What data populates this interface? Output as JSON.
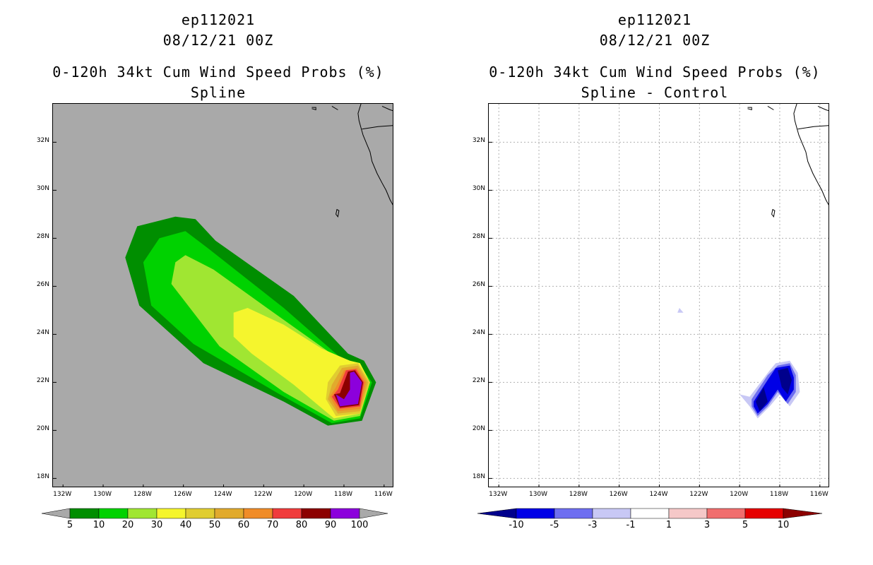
{
  "panels": [
    {
      "title1": "ep112021",
      "title2": "08/12/21 00Z",
      "title3": "0-120h 34kt Cum Wind Speed Probs (%)",
      "title4": "Spline"
    },
    {
      "title1": "ep112021",
      "title2": "08/12/21 00Z",
      "title3": "0-120h 34kt Cum Wind Speed Probs (%)",
      "title4": "Spline - Control"
    }
  ],
  "chart_data": [
    {
      "type": "contour-map",
      "title": "0-120h 34kt Cum Wind Speed Probs (%)",
      "subtitle": "Spline",
      "storm": "ep112021",
      "time": "08/12/21 00Z",
      "background_color": "#a9a9a9",
      "grid": false,
      "xlim": [
        -132.5,
        -115.5
      ],
      "ylim": [
        17.6,
        33.6
      ],
      "x_ticks": [
        -132,
        -130,
        -128,
        -126,
        -124,
        -122,
        -120,
        -118,
        -116
      ],
      "x_tick_labels": [
        "132W",
        "130W",
        "128W",
        "126W",
        "124W",
        "122W",
        "120W",
        "118W",
        "116W"
      ],
      "y_ticks": [
        18,
        20,
        22,
        24,
        26,
        28,
        30,
        32
      ],
      "y_tick_labels": [
        "18N",
        "20N",
        "22N",
        "24N",
        "26N",
        "28N",
        "30N",
        "32N"
      ],
      "colorbar": {
        "levels": [
          "5",
          "10",
          "20",
          "30",
          "40",
          "50",
          "60",
          "70",
          "80",
          "90",
          "100"
        ],
        "colors": [
          "#008e00",
          "#00d200",
          "#a0e632",
          "#f5f52d",
          "#e0cd31",
          "#e1aa2d",
          "#f08c28",
          "#f03c3c",
          "#8c0000",
          "#8c00dc"
        ],
        "extend_color": "#a9a9a9"
      },
      "contours": [
        {
          "level": "5-10",
          "color": "#008e00",
          "polygon": [
            [
              -128.9,
              27.2
            ],
            [
              -128.3,
              28.5
            ],
            [
              -126.4,
              28.9
            ],
            [
              -125.4,
              28.8
            ],
            [
              -124.4,
              27.9
            ],
            [
              -120.5,
              25.6
            ],
            [
              -117.8,
              23.2
            ],
            [
              -117.0,
              22.9
            ],
            [
              -116.4,
              22.0
            ],
            [
              -117.1,
              20.4
            ],
            [
              -118.8,
              20.2
            ],
            [
              -121.0,
              21.2
            ],
            [
              -125.0,
              22.8
            ],
            [
              -128.2,
              25.2
            ]
          ]
        },
        {
          "level": "10-20",
          "color": "#00d200",
          "polygon": [
            [
              -128.0,
              27.0
            ],
            [
              -127.2,
              28.0
            ],
            [
              -125.9,
              28.3
            ],
            [
              -124.8,
              27.6
            ],
            [
              -121.0,
              25.1
            ],
            [
              -118.0,
              22.9
            ],
            [
              -117.2,
              22.7
            ],
            [
              -116.6,
              22.0
            ],
            [
              -117.2,
              20.5
            ],
            [
              -118.6,
              20.3
            ],
            [
              -121.2,
              21.5
            ],
            [
              -125.5,
              23.6
            ],
            [
              -127.6,
              25.2
            ]
          ]
        },
        {
          "level": "20-30",
          "color": "#a0e632",
          "polygon": [
            [
              -126.6,
              26.1
            ],
            [
              -126.4,
              27.0
            ],
            [
              -125.9,
              27.3
            ],
            [
              -124.5,
              26.7
            ],
            [
              -121.5,
              24.9
            ],
            [
              -118.3,
              23.0
            ],
            [
              -117.2,
              22.8
            ],
            [
              -116.7,
              22.0
            ],
            [
              -117.2,
              20.6
            ],
            [
              -118.5,
              20.4
            ],
            [
              -121.0,
              21.6
            ],
            [
              -124.2,
              23.5
            ]
          ]
        },
        {
          "level": "30-40",
          "color": "#f5f52d",
          "polygon": [
            [
              -123.5,
              24.9
            ],
            [
              -122.8,
              25.1
            ],
            [
              -121.0,
              24.4
            ],
            [
              -119.1,
              23.4
            ],
            [
              -117.7,
              22.9
            ],
            [
              -117.2,
              22.8
            ],
            [
              -116.7,
              22.0
            ],
            [
              -117.2,
              20.7
            ],
            [
              -118.5,
              20.5
            ],
            [
              -120.5,
              21.9
            ],
            [
              -122.6,
              23.2
            ],
            [
              -123.5,
              23.9
            ]
          ]
        },
        {
          "level": "40-50",
          "color": "#e0cd31",
          "polygon": [
            [
              -118.2,
              22.7
            ],
            [
              -117.3,
              22.8
            ],
            [
              -116.7,
              22.0
            ],
            [
              -117.2,
              20.7
            ],
            [
              -118.4,
              20.6
            ],
            [
              -118.9,
              21.3
            ],
            [
              -118.8,
              22.0
            ]
          ]
        },
        {
          "level": "50-60",
          "color": "#e1aa2d",
          "polygon": [
            [
              -118.1,
              22.6
            ],
            [
              -117.3,
              22.7
            ],
            [
              -116.8,
              22.0
            ],
            [
              -117.2,
              20.8
            ],
            [
              -118.3,
              20.7
            ],
            [
              -118.8,
              21.3
            ],
            [
              -118.6,
              21.9
            ]
          ]
        },
        {
          "level": "60-70",
          "color": "#f08c28",
          "polygon": [
            [
              -118.0,
              22.5
            ],
            [
              -117.35,
              22.6
            ],
            [
              -116.9,
              22.0
            ],
            [
              -117.2,
              20.9
            ],
            [
              -118.3,
              20.8
            ],
            [
              -118.7,
              21.4
            ],
            [
              -118.4,
              21.8
            ]
          ]
        },
        {
          "level": "70-80",
          "color": "#f03c3c",
          "polygon": [
            [
              -117.9,
              22.5
            ],
            [
              -117.4,
              22.55
            ],
            [
              -117.0,
              22.0
            ],
            [
              -117.2,
              21.0
            ],
            [
              -118.2,
              20.9
            ],
            [
              -118.6,
              21.4
            ],
            [
              -118.3,
              21.7
            ]
          ]
        },
        {
          "level": "80-90",
          "color": "#8c0000",
          "polygon": [
            [
              -117.8,
              22.45
            ],
            [
              -117.45,
              22.5
            ],
            [
              -117.05,
              22.0
            ],
            [
              -117.25,
              21.05
            ],
            [
              -118.2,
              20.95
            ],
            [
              -118.5,
              21.5
            ],
            [
              -118.2,
              21.55
            ]
          ]
        },
        {
          "level": "90-100",
          "color": "#8c00dc",
          "polygon": [
            [
              -117.7,
              22.4
            ],
            [
              -117.5,
              22.45
            ],
            [
              -117.1,
              22.0
            ],
            [
              -117.3,
              21.1
            ],
            [
              -118.2,
              21.0
            ],
            [
              -118.4,
              21.5
            ],
            [
              -118.0,
              21.3
            ],
            [
              -117.7,
              21.7
            ]
          ]
        }
      ]
    },
    {
      "type": "contour-map",
      "title": "0-120h 34kt Cum Wind Speed Probs (%)",
      "subtitle": "Spline - Control",
      "storm": "ep112021",
      "time": "08/12/21 00Z",
      "background_color": "#ffffff",
      "grid": true,
      "xlim": [
        -132.5,
        -115.5
      ],
      "ylim": [
        17.6,
        33.6
      ],
      "x_ticks": [
        -132,
        -130,
        -128,
        -126,
        -124,
        -122,
        -120,
        -118,
        -116
      ],
      "x_tick_labels": [
        "132W",
        "130W",
        "128W",
        "126W",
        "124W",
        "122W",
        "120W",
        "118W",
        "116W"
      ],
      "y_ticks": [
        18,
        20,
        22,
        24,
        26,
        28,
        30,
        32
      ],
      "y_tick_labels": [
        "18N",
        "20N",
        "22N",
        "24N",
        "26N",
        "28N",
        "30N",
        "32N"
      ],
      "colorbar": {
        "levels": [
          "-10",
          "-5",
          "-3",
          "-1",
          "1",
          "3",
          "5",
          "10"
        ],
        "colors": [
          "#00008c",
          "#0000e6",
          "#6e6ef0",
          "#c8c8f5",
          "#ffffff",
          "#f5c8c8",
          "#f06e6e",
          "#e60000",
          "#8c0000"
        ]
      },
      "contours": [
        {
          "level": "-3 to -1",
          "color": "#c8c8f5",
          "polygon": [
            [
              -123.0,
              25.1
            ],
            [
              -122.8,
              24.9
            ],
            [
              -122.9,
              24.9
            ],
            [
              -123.1,
              24.9
            ]
          ]
        },
        {
          "level": "-3 to -1",
          "color": "#c8c8f5",
          "polygon": [
            [
              -119.5,
              21.4
            ],
            [
              -118.5,
              22.5
            ],
            [
              -118.2,
              22.8
            ],
            [
              -117.5,
              22.9
            ],
            [
              -117.1,
              22.4
            ],
            [
              -117.0,
              21.6
            ],
            [
              -117.5,
              21.0
            ],
            [
              -118.0,
              21.5
            ],
            [
              -118.5,
              21.0
            ],
            [
              -119.1,
              20.5
            ],
            [
              -119.5,
              21.0
            ],
            [
              -120.0,
              21.5
            ]
          ]
        },
        {
          "level": "-5 to -3",
          "color": "#6e6ef0",
          "polygon": [
            [
              -119.4,
              21.3
            ],
            [
              -118.6,
              22.3
            ],
            [
              -118.1,
              22.7
            ],
            [
              -117.5,
              22.8
            ],
            [
              -117.2,
              22.3
            ],
            [
              -117.2,
              21.6
            ],
            [
              -117.6,
              21.1
            ],
            [
              -118.1,
              21.6
            ],
            [
              -118.6,
              21.0
            ],
            [
              -119.1,
              20.6
            ],
            [
              -119.4,
              21.0
            ]
          ]
        },
        {
          "level": "-10 to -5",
          "color": "#0000e6",
          "polygon": [
            [
              -119.3,
              21.2
            ],
            [
              -118.6,
              22.1
            ],
            [
              -118.2,
              22.6
            ],
            [
              -117.5,
              22.7
            ],
            [
              -117.3,
              22.2
            ],
            [
              -117.3,
              21.7
            ],
            [
              -117.7,
              21.2
            ],
            [
              -118.1,
              21.7
            ],
            [
              -118.6,
              21.1
            ],
            [
              -119.1,
              20.7
            ],
            [
              -119.3,
              21.0
            ]
          ]
        },
        {
          "level": "< -10",
          "color": "#00008c",
          "polygon": [
            [
              -119.2,
              21.2
            ],
            [
              -118.8,
              21.8
            ],
            [
              -118.6,
              21.2
            ],
            [
              -119.0,
              20.8
            ]
          ]
        },
        {
          "level": "< -10",
          "color": "#00008c",
          "polygon": [
            [
              -118.1,
              22.5
            ],
            [
              -117.6,
              22.6
            ],
            [
              -117.4,
              22.1
            ],
            [
              -117.6,
              21.5
            ],
            [
              -117.9,
              21.8
            ]
          ]
        }
      ]
    }
  ]
}
